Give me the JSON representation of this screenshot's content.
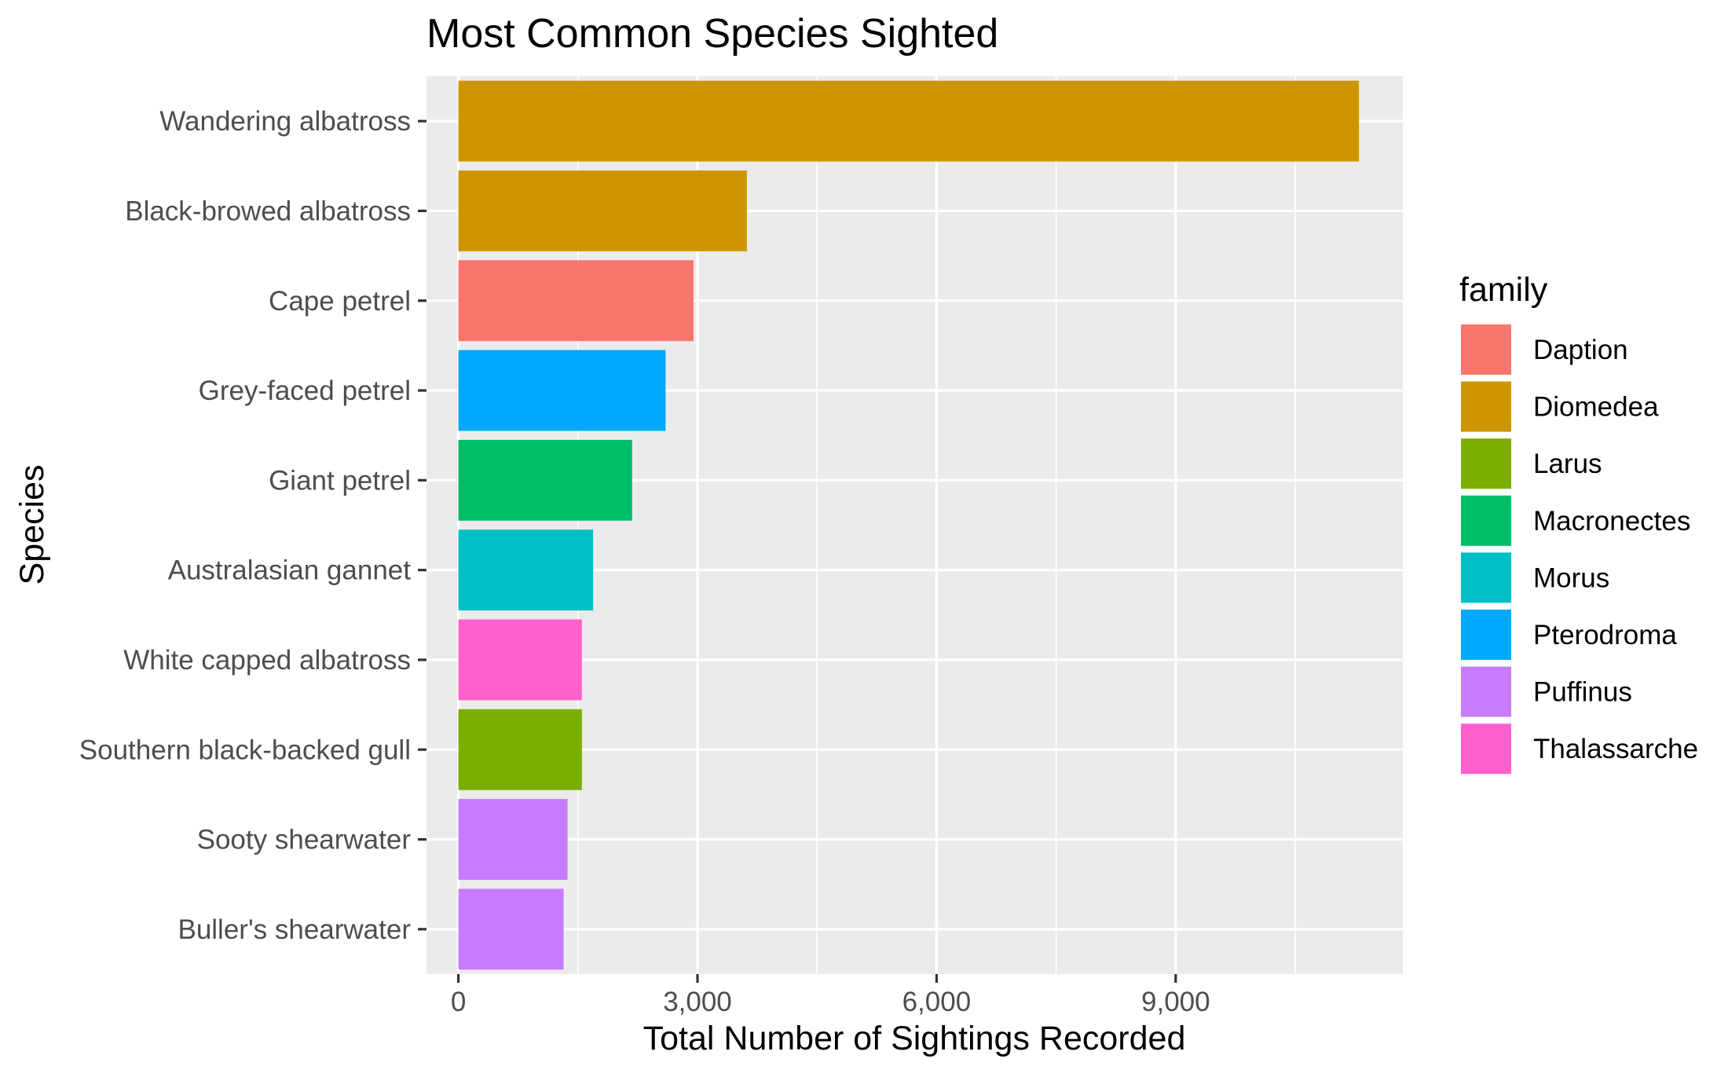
{
  "chart_data": {
    "type": "bar",
    "orientation": "horizontal",
    "title": "Most Common Species Sighted",
    "xlabel": "Total Number of Sightings Recorded",
    "ylabel": "Species",
    "xlim": [
      -400,
      11850
    ],
    "x_ticks": [
      0,
      3000,
      6000,
      9000
    ],
    "x_tick_labels": [
      "0",
      "3,000",
      "6,000",
      "9,000"
    ],
    "x_minor_ticks": [
      1500,
      4500,
      7500,
      10500
    ],
    "grid": true,
    "legend": {
      "title": "family",
      "placement": "right",
      "entries": [
        {
          "name": "Daption",
          "color": "#F8766D"
        },
        {
          "name": "Diomedea",
          "color": "#CD9600"
        },
        {
          "name": "Larus",
          "color": "#7CAE00"
        },
        {
          "name": "Macronectes",
          "color": "#00BE67"
        },
        {
          "name": "Morus",
          "color": "#00BFC4"
        },
        {
          "name": "Pterodroma",
          "color": "#00A9FF"
        },
        {
          "name": "Puffinus",
          "color": "#C77CFF"
        },
        {
          "name": "Thalassarche",
          "color": "#FF61CC"
        }
      ]
    },
    "categories": [
      "Wandering albatross",
      "Black-browed albatross",
      "Cape petrel",
      "Grey-faced petrel",
      "Giant petrel",
      "Australasian gannet",
      "White capped albatross",
      "Southern black-backed gull",
      "Sooty shearwater",
      "Buller's shearwater"
    ],
    "values": [
      11300,
      3620,
      2950,
      2600,
      2180,
      1690,
      1550,
      1550,
      1370,
      1320
    ],
    "families": [
      "Diomedea",
      "Diomedea",
      "Daption",
      "Pterodroma",
      "Macronectes",
      "Morus",
      "Thalassarche",
      "Larus",
      "Puffinus",
      "Puffinus"
    ],
    "panel_background": "#EBEBEB"
  }
}
